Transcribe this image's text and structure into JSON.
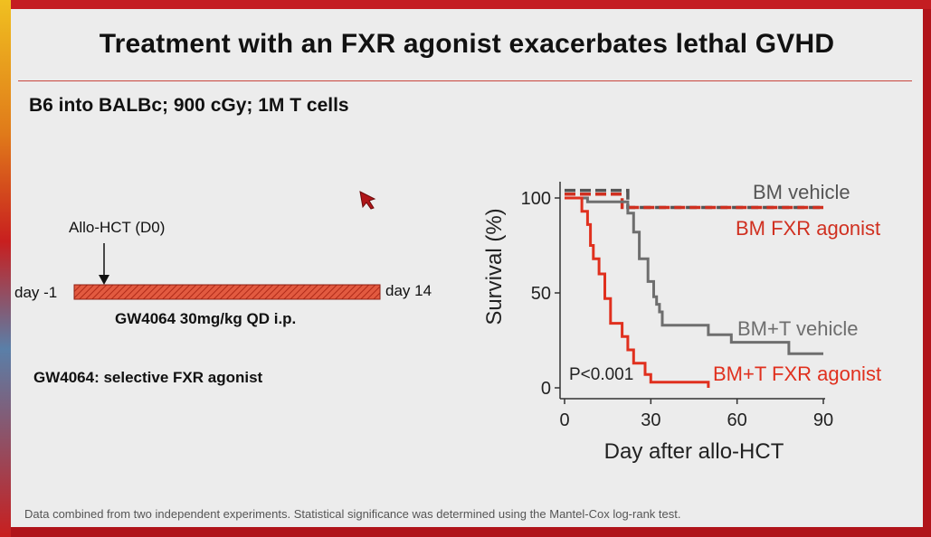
{
  "slide": {
    "title": "Treatment with an FXR agonist exacerbates lethal GVHD",
    "subtitle": "B6 into BALBc; 900 cGy; 1M T cells",
    "footnote": "Data combined from two independent experiments. Statistical significance was determined using the Mantel-Cox log-rank test."
  },
  "timeline": {
    "event_label": "Allo-HCT (D0)",
    "start_label": "day -1",
    "end_label": "day 14",
    "treatment_label": "GW4064 30mg/kg QD i.p.",
    "note": "GW4064: selective FXR agonist"
  },
  "colors": {
    "gray": "#6e6e6e",
    "red": "#e0301e",
    "title_rule": "#c8463e"
  },
  "chart_data": {
    "type": "line",
    "xlabel": "Day after allo-HCT",
    "ylabel": "Survival (%)",
    "xlim": [
      0,
      90
    ],
    "ylim": [
      0,
      100
    ],
    "x_ticks": [
      "0",
      "30",
      "60",
      "90"
    ],
    "y_ticks": [
      "0",
      "50",
      "100"
    ],
    "annotation": "P<0.001",
    "series": [
      {
        "name": "BM vehicle",
        "style": "dashed",
        "color": "#555555",
        "x": [
          0,
          22,
          22,
          90
        ],
        "y": [
          104,
          104,
          95,
          95
        ]
      },
      {
        "name": "BM FXR agonist",
        "style": "dashed",
        "color": "#d03020",
        "x": [
          0,
          20,
          20,
          90
        ],
        "y": [
          102,
          102,
          95,
          95
        ]
      },
      {
        "name": "BM+T vehicle",
        "style": "solid",
        "color": "#6e6e6e",
        "x": [
          0,
          8,
          8,
          22,
          22,
          24,
          24,
          26,
          26,
          29,
          29,
          31,
          31,
          32,
          32,
          33,
          33,
          34,
          34,
          36,
          36,
          50,
          50,
          58,
          58,
          78,
          78,
          90
        ],
        "y": [
          100,
          100,
          98,
          98,
          92,
          92,
          82,
          82,
          68,
          68,
          56,
          56,
          48,
          48,
          44,
          44,
          40,
          40,
          33,
          33,
          33,
          33,
          28,
          28,
          24,
          24,
          18,
          18
        ]
      },
      {
        "name": "BM+T FXR agonist",
        "style": "solid",
        "color": "#e0301e",
        "x": [
          0,
          6,
          6,
          8,
          8,
          9,
          9,
          10,
          10,
          12,
          12,
          14,
          14,
          16,
          16,
          20,
          20,
          22,
          22,
          24,
          24,
          28,
          28,
          30,
          30,
          50,
          50
        ],
        "y": [
          100,
          100,
          93,
          93,
          86,
          86,
          75,
          75,
          68,
          68,
          60,
          60,
          47,
          47,
          34,
          34,
          27,
          27,
          20,
          20,
          13,
          13,
          7,
          7,
          3,
          3,
          0
        ]
      }
    ]
  }
}
